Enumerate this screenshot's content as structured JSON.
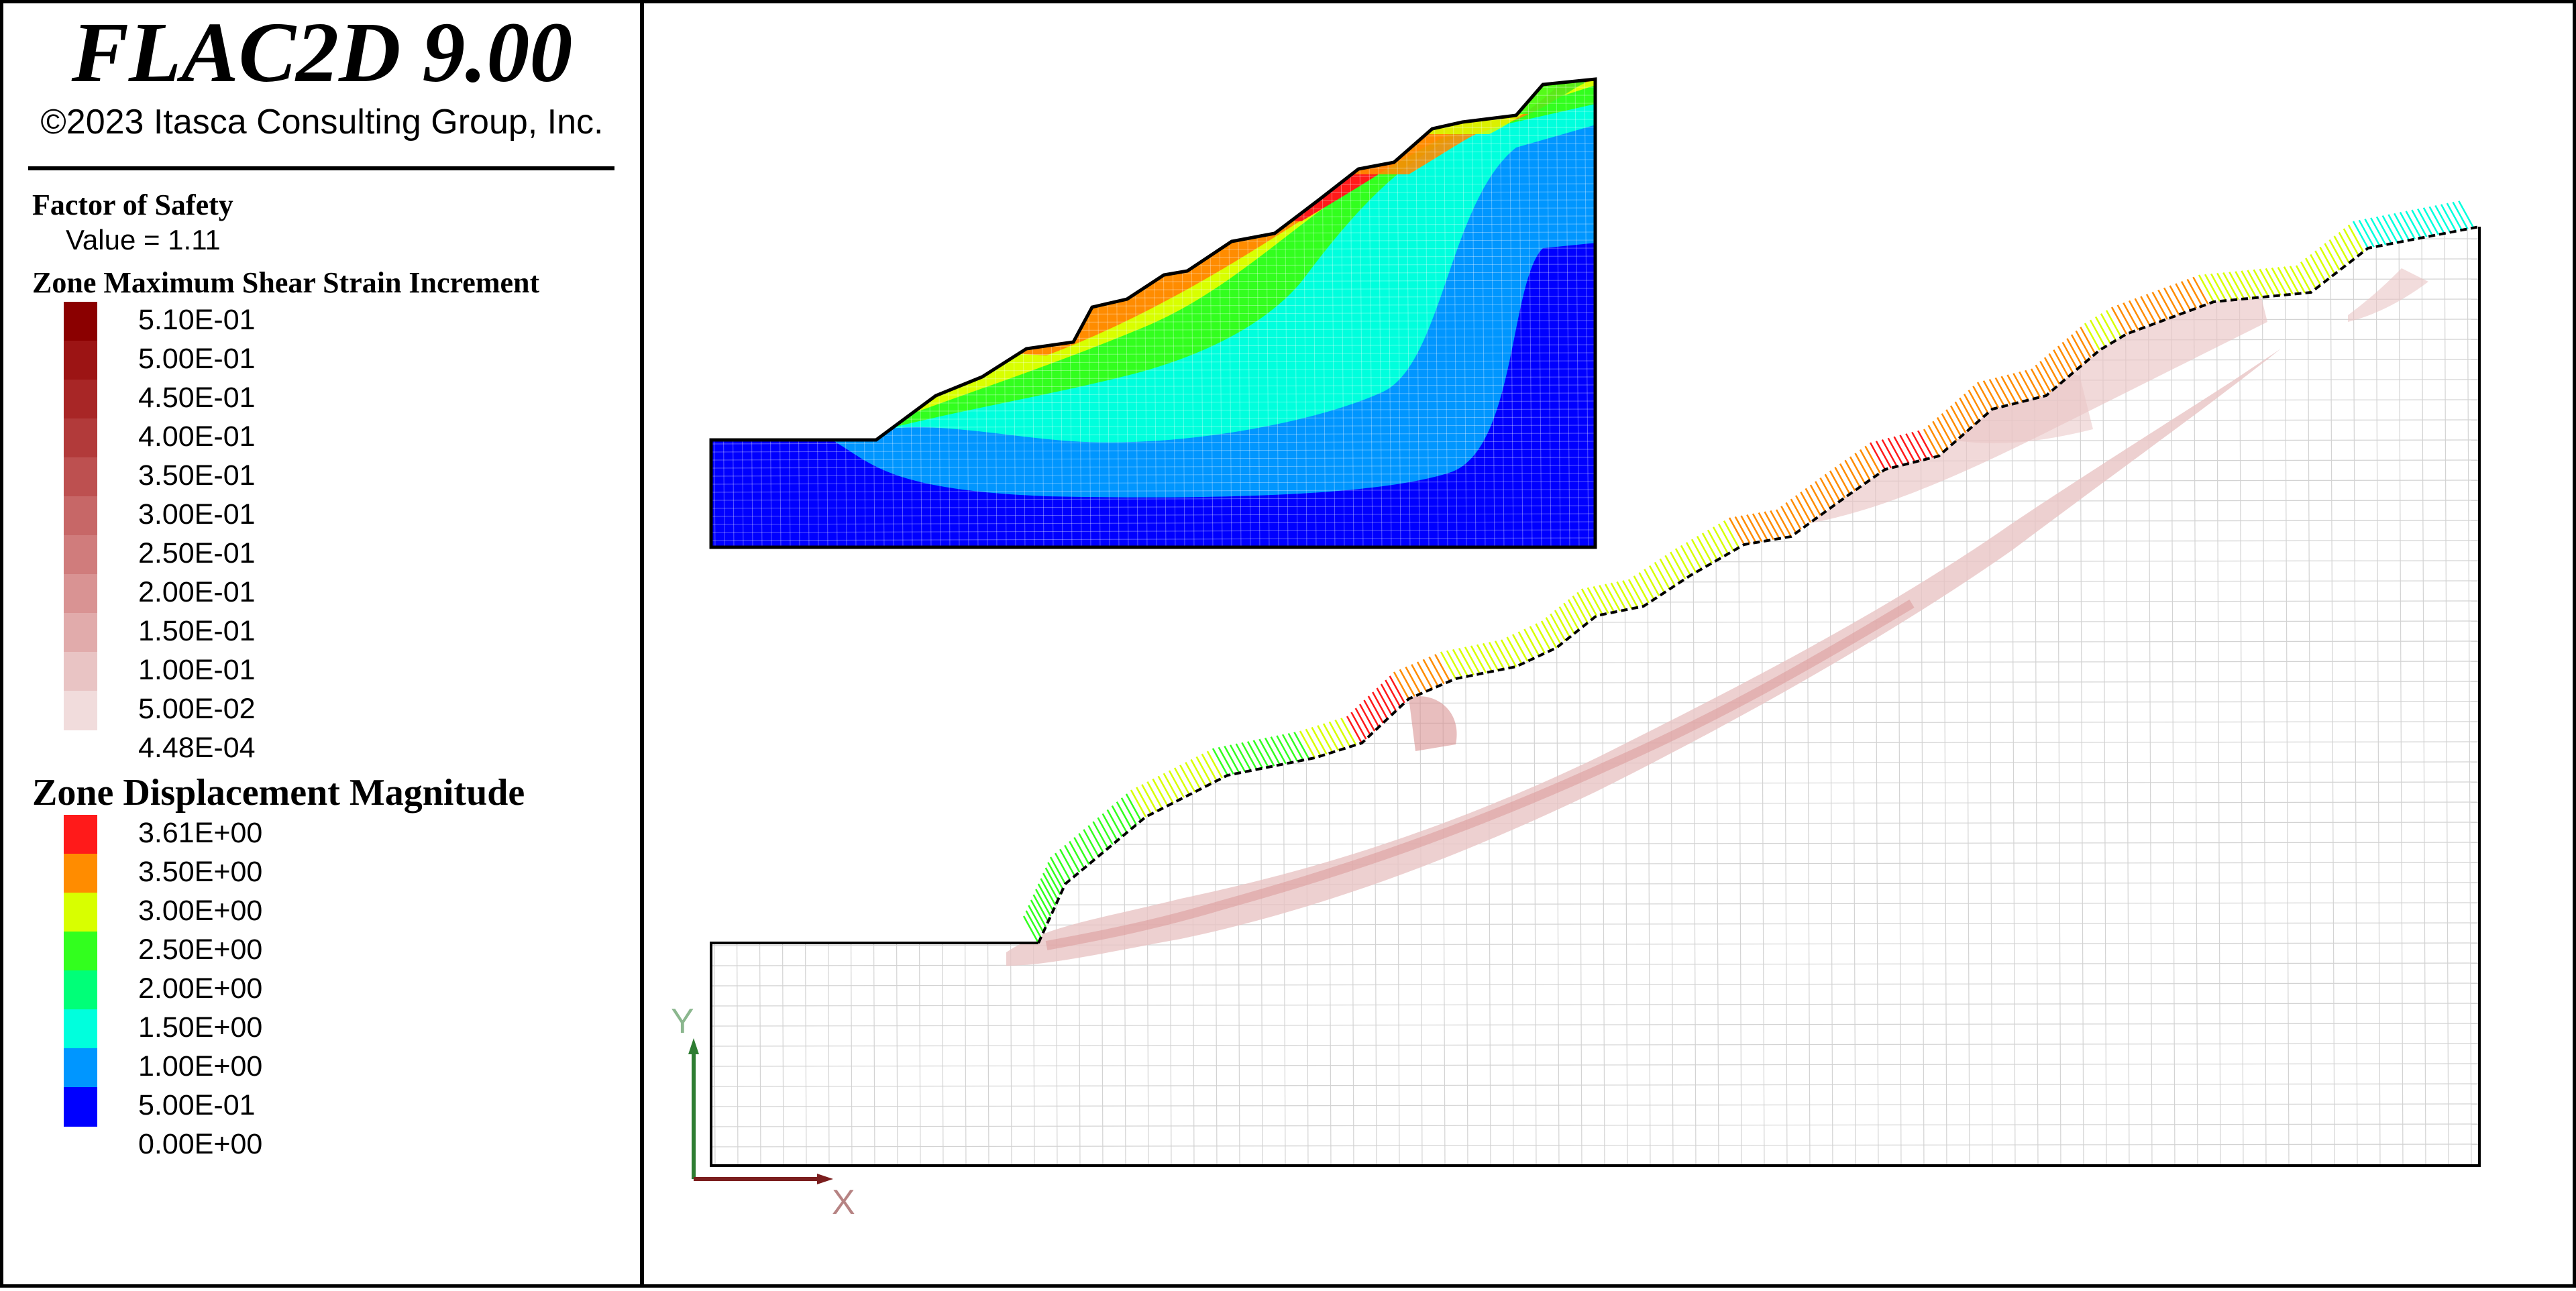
{
  "app": {
    "title": "FLAC2D 9.00",
    "copyright": "©2023 Itasca Consulting Group, Inc."
  },
  "factor_of_safety": {
    "heading": "Factor of Safety",
    "value_text": "Value = 1.11",
    "value": 1.11
  },
  "shear_strain_legend": {
    "heading": "Zone Maximum Shear Strain Increment",
    "labels": [
      "5.10E-01",
      "5.00E-01",
      "4.50E-01",
      "4.00E-01",
      "3.50E-01",
      "3.00E-01",
      "2.50E-01",
      "2.00E-01",
      "1.50E-01",
      "1.00E-01",
      "5.00E-02",
      "4.48E-04"
    ],
    "colors": [
      "#8b0000",
      "#9c1414",
      "#a82626",
      "#b23a3a",
      "#bd5050",
      "#c76767",
      "#d07c7c",
      "#d99393",
      "#e1abab",
      "#e9c4c4",
      "#f1dcdc"
    ]
  },
  "displacement_legend": {
    "heading": "Zone Displacement Magnitude",
    "labels": [
      "3.61E+00",
      "3.50E+00",
      "3.00E+00",
      "2.50E+00",
      "2.00E+00",
      "1.50E+00",
      "1.00E+00",
      "5.00E-01",
      "0.00E+00"
    ],
    "colors": [
      "#ff1a1a",
      "#ff8c00",
      "#d8ff00",
      "#32ff1e",
      "#00ff78",
      "#00ffdd",
      "#0096ff",
      "#0000ff"
    ]
  },
  "axes": {
    "y_label": "Y",
    "x_label": "X",
    "y_color": "#2e7d32",
    "x_color": "#7b1e1e"
  }
}
